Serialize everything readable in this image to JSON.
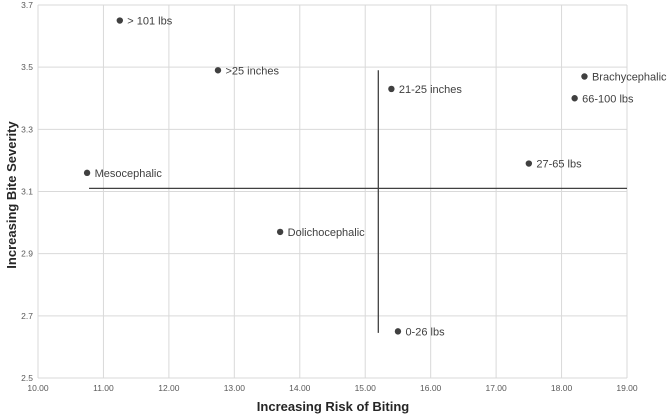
{
  "chart_data": {
    "type": "scatter",
    "title": "",
    "xlabel": "Increasing Risk of Biting",
    "ylabel": "Increasing Bite Severity",
    "xlim": [
      10,
      19
    ],
    "ylim": [
      2.5,
      3.7
    ],
    "grid": true,
    "legend": "none",
    "x_ticks": [
      10,
      11,
      12,
      13,
      14,
      15,
      16,
      17,
      18,
      19
    ],
    "x_tick_labels": [
      "10.00",
      "11.00",
      "12.00",
      "13.00",
      "14.00",
      "15.00",
      "16.00",
      "17.00",
      "18.00",
      "19.00"
    ],
    "y_ticks": [
      2.5,
      2.7,
      2.9,
      3.1,
      3.3,
      3.5,
      3.7
    ],
    "y_tick_labels": [
      "2.5",
      "2.7",
      "2.9",
      "3.1",
      "3.3",
      "3.5",
      "3.7"
    ],
    "points": [
      {
        "label": "> 101 lbs",
        "x": 11.25,
        "y": 3.65
      },
      {
        "label": ">25 inches",
        "x": 12.75,
        "y": 3.49
      },
      {
        "label": "21-25 inches",
        "x": 15.4,
        "y": 3.43
      },
      {
        "label": "Brachycephalic",
        "x": 18.35,
        "y": 3.47
      },
      {
        "label": "66-100 lbs",
        "x": 18.2,
        "y": 3.4
      },
      {
        "label": "27-65 lbs",
        "x": 17.5,
        "y": 3.19
      },
      {
        "label": "Mesocephalic",
        "x": 10.75,
        "y": 3.16
      },
      {
        "label": "Dolichocephalic",
        "x": 13.7,
        "y": 2.97
      },
      {
        "label": "0-26 lbs",
        "x": 15.5,
        "y": 2.65
      }
    ],
    "reference_lines": {
      "vertical": {
        "x": 15.2,
        "y_from": 2.645,
        "y_to": 3.49
      },
      "horizontal": {
        "y": 3.11,
        "x_from": 10.78,
        "x_to": 19.0
      }
    }
  },
  "colors": {
    "background": "#ffffff",
    "gridline": "#d9d9d9",
    "tick_label": "#595959",
    "axis_title": "#262626",
    "point": "#404040",
    "point_label": "#404040",
    "reference_line": "#404040"
  }
}
